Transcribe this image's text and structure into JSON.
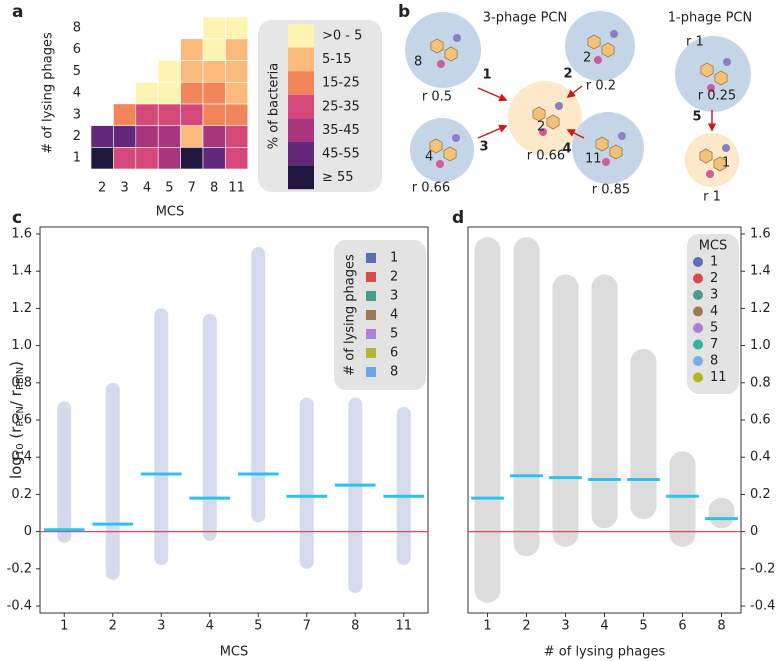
{
  "chart_data": [
    {
      "type": "heatmap",
      "panel_label": "a",
      "xlabel": "MCS",
      "ylabel": "# of lysing phages",
      "x_categories": [
        "2",
        "3",
        "4",
        "5",
        "7",
        "8",
        "11"
      ],
      "y_categories": [
        "1",
        "2",
        "3",
        "4",
        "5",
        "6",
        "8"
      ],
      "values": [
        [
          60,
          30,
          30,
          40,
          60,
          50,
          30
        ],
        [
          50,
          50,
          40,
          40,
          10,
          40,
          30
        ],
        [
          null,
          20,
          30,
          30,
          30,
          20,
          20
        ],
        [
          null,
          null,
          3,
          3,
          20,
          20,
          10
        ],
        [
          null,
          null,
          null,
          3,
          10,
          10,
          10
        ],
        [
          null,
          null,
          null,
          null,
          10,
          3,
          10
        ],
        [
          null,
          null,
          null,
          null,
          null,
          3,
          3
        ]
      ],
      "legend": {
        "title": "% of bacteria",
        "bins": [
          0,
          5,
          15,
          25,
          35,
          45,
          55
        ],
        "labels": [
          ">0 - 5",
          "5-15",
          "15-25",
          "25-35",
          "35-45",
          "45-55",
          "≥ 55"
        ],
        "colors": [
          "#fdf4b2",
          "#fbb97c",
          "#f2865a",
          "#d4497a",
          "#a8367f",
          "#63287c",
          "#21183f"
        ]
      }
    },
    {
      "type": "strip",
      "panel_label": "c",
      "xlabel": "MCS",
      "ylabel": [
        "log",
        "10",
        " (r",
        "PCN",
        "/ r",
        "PBIN",
        ")"
      ],
      "categories": [
        "1",
        "2",
        "3",
        "4",
        "5",
        "7",
        "8",
        "11"
      ],
      "means": [
        0.01,
        0.04,
        0.31,
        0.18,
        0.31,
        0.19,
        0.25,
        0.19
      ],
      "min": [
        -0.06,
        -0.26,
        -0.18,
        -0.05,
        0.05,
        -0.2,
        -0.33,
        -0.18
      ],
      "max": [
        0.7,
        0.8,
        1.2,
        1.17,
        1.53,
        0.72,
        0.72,
        0.67
      ],
      "mean_color": "#2cc3ea",
      "range_color": "#8796c8",
      "y_axis": "left",
      "ylim": [
        -0.4,
        1.6
      ],
      "yticks": [
        -0.4,
        -0.2,
        0,
        0.2,
        0.4,
        0.6,
        0.8,
        {
          "value": 1,
          "label": "1.0"
        },
        1.2,
        1.4,
        1.6
      ],
      "reference_line": 0,
      "reference_color": "#e0485a",
      "negative_tick_color": "#e02020",
      "legend": {
        "title": "# of lysing phages",
        "marker": "square",
        "entries": [
          {
            "name": "1",
            "color": "#5a6fb5"
          },
          {
            "name": "2",
            "color": "#d94b4b"
          },
          {
            "name": "3",
            "color": "#4a9a8e"
          },
          {
            "name": "4",
            "color": "#9c7a55"
          },
          {
            "name": "5",
            "color": "#b07ed8"
          },
          {
            "name": "6",
            "color": "#b5b53a"
          },
          {
            "name": "8",
            "color": "#6aa6e0"
          }
        ]
      }
    },
    {
      "type": "violin",
      "panel_label": "d",
      "xlabel": "# of lysing phages",
      "categories": [
        "1",
        "2",
        "3",
        "4",
        "5",
        "6",
        "8"
      ],
      "means": [
        0.18,
        0.3,
        0.29,
        0.28,
        0.28,
        0.19,
        0.07
      ],
      "min": [
        -0.35,
        -0.1,
        -0.05,
        0.05,
        0.1,
        -0.05,
        0.05
      ],
      "max": [
        1.55,
        1.55,
        1.35,
        1.35,
        0.95,
        0.4,
        0.15
      ],
      "mean_color": "#2cc3ea",
      "range_color": "#dcdcdc",
      "y_axis": "right",
      "ylim": [
        -0.4,
        1.6
      ],
      "yticks": [
        -0.4,
        -0.2,
        0,
        0.2,
        0.4,
        0.6,
        0.8,
        {
          "value": 1,
          "label": "1.0"
        },
        1.2,
        1.4,
        1.6
      ],
      "reference_line": 0,
      "reference_color": "#e0485a",
      "negative_tick_color": "#e02020",
      "legend": {
        "title": "MCS",
        "marker": "circle",
        "entries": [
          {
            "name": "1",
            "color": "#5a6fb5"
          },
          {
            "name": "2",
            "color": "#d94b4b"
          },
          {
            "name": "3",
            "color": "#4a9a8e"
          },
          {
            "name": "4",
            "color": "#9c7a55"
          },
          {
            "name": "5",
            "color": "#b07ed8"
          },
          {
            "name": "7",
            "color": "#2fb59a"
          },
          {
            "name": "8",
            "color": "#79aee6"
          },
          {
            "name": "11",
            "color": "#b5b520"
          }
        ]
      }
    }
  ],
  "diagram": {
    "panel_label": "b",
    "titles": [
      "3-phage PCN",
      "1-phage PCN"
    ],
    "nodes": [
      {
        "label": "8",
        "rate": "r 0.5"
      },
      {
        "label": "2",
        "rate": "r 0.2"
      },
      {
        "label": "2",
        "rate": "r 0.66"
      },
      {
        "label": "4",
        "rate": "r 0.66"
      },
      {
        "label": "11",
        "rate": "r 0.85"
      },
      {
        "label": "r 1",
        "rate": "r 0.25"
      },
      {
        "label": "1",
        "rate": "r 1"
      }
    ],
    "arrows": [
      "1",
      "2",
      "3",
      "4",
      "5"
    ]
  }
}
